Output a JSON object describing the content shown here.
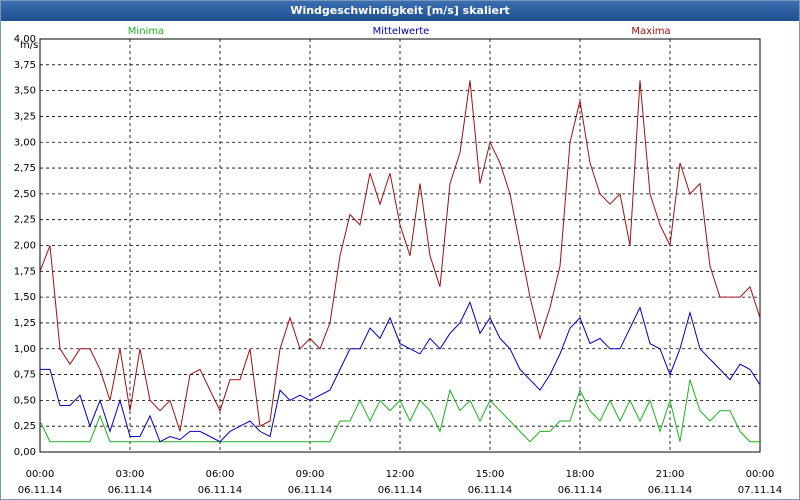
{
  "chart_data": {
    "type": "line",
    "title": "Windgeschwindigkeit [m/s] skaliert",
    "y_label": "m/s",
    "x": [
      0,
      20,
      40,
      60,
      80,
      100,
      120,
      140,
      160,
      180,
      200,
      220,
      240,
      260,
      280,
      300,
      320,
      340,
      360,
      380,
      400,
      420,
      440,
      460,
      480,
      500,
      520,
      540,
      560,
      580,
      600,
      620,
      640,
      660,
      680,
      700,
      720,
      740,
      760,
      780,
      800,
      820,
      840,
      860,
      880,
      900,
      920,
      940,
      960,
      980,
      1000,
      1020,
      1040,
      1060,
      1080,
      1100,
      1120,
      1140,
      1160,
      1180,
      1200,
      1220,
      1240,
      1260,
      1280,
      1300,
      1320,
      1340,
      1360,
      1380,
      1400,
      1420,
      1440
    ],
    "series": [
      {
        "name": "Minima",
        "color": "#1fb01f",
        "values": [
          0.3,
          0.1,
          0.1,
          0.1,
          0.1,
          0.1,
          0.35,
          0.1,
          0.1,
          0.1,
          0.1,
          0.1,
          0.1,
          0.1,
          0.1,
          0.1,
          0.1,
          0.1,
          0.1,
          0.1,
          0.1,
          0.1,
          0.1,
          0.1,
          0.1,
          0.1,
          0.1,
          0.1,
          0.1,
          0.1,
          0.3,
          0.3,
          0.5,
          0.3,
          0.5,
          0.4,
          0.5,
          0.3,
          0.5,
          0.4,
          0.2,
          0.6,
          0.4,
          0.5,
          0.3,
          0.5,
          0.4,
          0.3,
          0.2,
          0.1,
          0.2,
          0.2,
          0.3,
          0.3,
          0.6,
          0.4,
          0.3,
          0.5,
          0.3,
          0.5,
          0.3,
          0.5,
          0.2,
          0.5,
          0.1,
          0.7,
          0.4,
          0.3,
          0.4,
          0.4,
          0.2,
          0.1,
          0.1
        ]
      },
      {
        "name": "Mittelwerte",
        "color": "#0000c0",
        "values": [
          0.8,
          0.8,
          0.45,
          0.45,
          0.55,
          0.25,
          0.5,
          0.2,
          0.5,
          0.15,
          0.15,
          0.35,
          0.1,
          0.15,
          0.12,
          0.2,
          0.2,
          0.15,
          0.1,
          0.2,
          0.25,
          0.3,
          0.2,
          0.15,
          0.6,
          0.5,
          0.55,
          0.5,
          0.55,
          0.6,
          0.8,
          1.0,
          1.0,
          1.2,
          1.1,
          1.3,
          1.05,
          1.0,
          0.95,
          1.1,
          1.0,
          1.15,
          1.25,
          1.45,
          1.15,
          1.3,
          1.1,
          1.0,
          0.8,
          0.7,
          0.6,
          0.75,
          0.95,
          1.2,
          1.3,
          1.05,
          1.1,
          1.0,
          1.0,
          1.2,
          1.4,
          1.05,
          1.0,
          0.75,
          1.0,
          1.35,
          1.0,
          0.9,
          0.8,
          0.7,
          0.85,
          0.8,
          0.65
        ]
      },
      {
        "name": "Maxima",
        "color": "#a01010",
        "values": [
          1.75,
          2.0,
          1.0,
          0.85,
          1.0,
          1.0,
          0.8,
          0.5,
          1.0,
          0.4,
          1.0,
          0.5,
          0.4,
          0.5,
          0.2,
          0.75,
          0.8,
          0.6,
          0.4,
          0.7,
          0.7,
          1.0,
          0.25,
          0.3,
          1.0,
          1.3,
          1.0,
          1.1,
          1.0,
          1.25,
          1.9,
          2.3,
          2.2,
          2.7,
          2.4,
          2.7,
          2.2,
          1.9,
          2.6,
          1.9,
          1.6,
          2.6,
          2.9,
          3.6,
          2.6,
          3.0,
          2.8,
          2.5,
          2.0,
          1.5,
          1.1,
          1.4,
          1.8,
          3.0,
          3.4,
          2.8,
          2.5,
          2.4,
          2.5,
          2.0,
          3.6,
          2.5,
          2.2,
          2.0,
          2.8,
          2.5,
          2.6,
          1.8,
          1.5,
          1.5,
          1.5,
          1.6,
          1.3
        ]
      }
    ],
    "xlim": [
      0,
      1440
    ],
    "xticks": [
      {
        "value": 0,
        "label": "00:00",
        "date": "06.11.14"
      },
      {
        "value": 180,
        "label": "03:00",
        "date": "06.11.14"
      },
      {
        "value": 360,
        "label": "06:00",
        "date": "06.11.14"
      },
      {
        "value": 540,
        "label": "09:00",
        "date": "06.11.14"
      },
      {
        "value": 720,
        "label": "12:00",
        "date": "06.11.14"
      },
      {
        "value": 900,
        "label": "15:00",
        "date": "06.11.14"
      },
      {
        "value": 1080,
        "label": "18:00",
        "date": "06.11.14"
      },
      {
        "value": 1260,
        "label": "21:00",
        "date": "06.11.14"
      },
      {
        "value": 1440,
        "label": "00:00",
        "date": "07.11.14"
      }
    ],
    "ylim": [
      0,
      4
    ],
    "yticks": [
      {
        "value": 0,
        "label": "0,00"
      },
      {
        "value": 0.25,
        "label": "0,25"
      },
      {
        "value": 0.5,
        "label": "0,50"
      },
      {
        "value": 0.75,
        "label": "0,75"
      },
      {
        "value": 1,
        "label": "1,00"
      },
      {
        "value": 1.25,
        "label": "1,25"
      },
      {
        "value": 1.5,
        "label": "1,50"
      },
      {
        "value": 1.75,
        "label": "1,75"
      },
      {
        "value": 2,
        "label": "2,00"
      },
      {
        "value": 2.25,
        "label": "2,25"
      },
      {
        "value": 2.5,
        "label": "2,50"
      },
      {
        "value": 2.75,
        "label": "2,75"
      },
      {
        "value": 3,
        "label": "3,00"
      },
      {
        "value": 3.25,
        "label": "3,25"
      },
      {
        "value": 3.5,
        "label": "3,50"
      },
      {
        "value": 3.75,
        "label": "3,75"
      },
      {
        "value": 4,
        "label": "4,00"
      }
    ],
    "grid": true
  }
}
